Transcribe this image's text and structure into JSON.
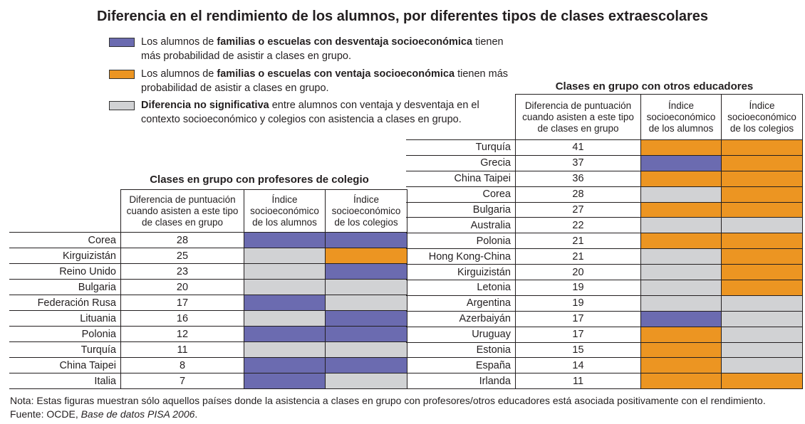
{
  "title": "Diferencia en el rendimiento de los alumnos, por diferentes tipos de clases extraescolares",
  "colors": {
    "d": "#6b6bb0",
    "a": "#ec9522",
    "n": "#d1d2d4"
  },
  "legend": [
    {
      "code": "d",
      "pre": "Los alumnos de ",
      "bold": "familias o escuelas con desventaja socioeconómica",
      "post": " tienen más probabilidad de asistir a clases en grupo."
    },
    {
      "code": "a",
      "pre": "Los alumnos de ",
      "bold": "familias o escuelas con ventaja socioeconómica",
      "post": " tienen más probabilidad de asistir a clases en grupo."
    },
    {
      "code": "n",
      "pre": "",
      "bold": "Diferencia no significativa",
      "post": " entre alumnos con ventaja y desventaja en el contexto socioeconómico y colegios con asistencia a clases en grupo."
    }
  ],
  "chart_data": [
    {
      "type": "table",
      "title": "Clases en grupo con profesores de colegio",
      "columns": [
        "Diferencia de puntuación cuando asisten a este tipo de clases en grupo",
        "Índice socioeconómico de los alumnos",
        "Índice socioeconómico de los colegios"
      ],
      "rows": [
        {
          "country": "Corea",
          "score": 28,
          "alumnos": "d",
          "colegios": "d"
        },
        {
          "country": "Kirguizistán",
          "score": 25,
          "alumnos": "n",
          "colegios": "a"
        },
        {
          "country": "Reino Unido",
          "score": 23,
          "alumnos": "n",
          "colegios": "d"
        },
        {
          "country": "Bulgaria",
          "score": 20,
          "alumnos": "n",
          "colegios": "n"
        },
        {
          "country": "Federación Rusa",
          "score": 17,
          "alumnos": "d",
          "colegios": "n"
        },
        {
          "country": "Lituania",
          "score": 16,
          "alumnos": "n",
          "colegios": "d"
        },
        {
          "country": "Polonia",
          "score": 12,
          "alumnos": "d",
          "colegios": "d"
        },
        {
          "country": "Turquía",
          "score": 11,
          "alumnos": "n",
          "colegios": "n"
        },
        {
          "country": "China Taipei",
          "score": 8,
          "alumnos": "d",
          "colegios": "d"
        },
        {
          "country": "Italia",
          "score": 7,
          "alumnos": "d",
          "colegios": "n"
        }
      ]
    },
    {
      "type": "table",
      "title": "Clases en grupo con otros educadores",
      "columns": [
        "Diferencia de puntuación cuando asisten a este tipo de clases en grupo",
        "Índice socioeconómico de los alumnos",
        "Índice socioeconómico de los colegios"
      ],
      "rows": [
        {
          "country": "Turquía",
          "score": 41,
          "alumnos": "a",
          "colegios": "a"
        },
        {
          "country": "Grecia",
          "score": 37,
          "alumnos": "d",
          "colegios": "a"
        },
        {
          "country": "China Taipei",
          "score": 36,
          "alumnos": "a",
          "colegios": "a"
        },
        {
          "country": "Corea",
          "score": 28,
          "alumnos": "n",
          "colegios": "a"
        },
        {
          "country": "Bulgaria",
          "score": 27,
          "alumnos": "a",
          "colegios": "a"
        },
        {
          "country": "Australia",
          "score": 22,
          "alumnos": "n",
          "colegios": "n"
        },
        {
          "country": "Polonia",
          "score": 21,
          "alumnos": "a",
          "colegios": "a"
        },
        {
          "country": "Hong Kong-China",
          "score": 21,
          "alumnos": "n",
          "colegios": "a"
        },
        {
          "country": "Kirguizistán",
          "score": 20,
          "alumnos": "n",
          "colegios": "a"
        },
        {
          "country": "Letonia",
          "score": 19,
          "alumnos": "n",
          "colegios": "a"
        },
        {
          "country": "Argentina",
          "score": 19,
          "alumnos": "n",
          "colegios": "n"
        },
        {
          "country": "Azerbaiyán",
          "score": 17,
          "alumnos": "d",
          "colegios": "n"
        },
        {
          "country": "Uruguay",
          "score": 17,
          "alumnos": "a",
          "colegios": "n"
        },
        {
          "country": "Estonia",
          "score": 15,
          "alumnos": "a",
          "colegios": "n"
        },
        {
          "country": "España",
          "score": 14,
          "alumnos": "a",
          "colegios": "n"
        },
        {
          "country": "Irlanda",
          "score": 11,
          "alumnos": "a",
          "colegios": "a"
        }
      ]
    }
  ],
  "note": {
    "line1": "Nota: Estas figuras muestran sólo aquellos países donde la asistencia a clases en grupo con profesores/otros educadores está asociada positivamente con el rendimiento.",
    "source_pre": "Fuente: OCDE, ",
    "source_italic": "Base de datos PISA 2006",
    "source_post": "."
  }
}
